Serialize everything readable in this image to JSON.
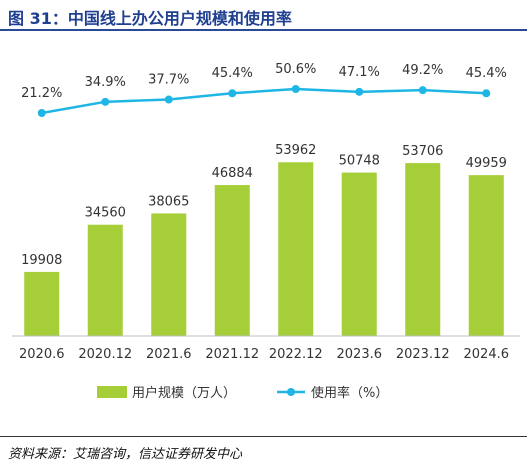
{
  "title": "图 31：中国线上办公用户规模和使用率",
  "source": "资料来源：艾瑞咨询，信达证券研发中心",
  "colors": {
    "bar": "#a6ce39",
    "line": "#1fb6e6",
    "title": "#1f3f8f",
    "text": "#333333",
    "axis": "#bfbfbf"
  },
  "chart_data": {
    "type": "bar+line",
    "categories": [
      "2020.6",
      "2020.12",
      "2021.6",
      "2021.12",
      "2022.12",
      "2023.6",
      "2023.12",
      "2024.6"
    ],
    "series": [
      {
        "name": "用户规模（万人）",
        "type": "bar",
        "values": [
          19908,
          34560,
          38065,
          46884,
          53962,
          50748,
          53706,
          49959
        ],
        "labels": [
          "19908",
          "34560",
          "38065",
          "46884",
          "53962",
          "50748",
          "53706",
          "49959"
        ]
      },
      {
        "name": "使用率（%）",
        "type": "line",
        "values": [
          21.2,
          34.9,
          37.7,
          45.4,
          50.6,
          47.1,
          49.2,
          45.4
        ],
        "labels": [
          "21.2%",
          "34.9%",
          "37.7%",
          "45.4%",
          "50.6%",
          "47.1%",
          "49.2%",
          "45.4%"
        ]
      }
    ],
    "legend_position": "bottom"
  }
}
